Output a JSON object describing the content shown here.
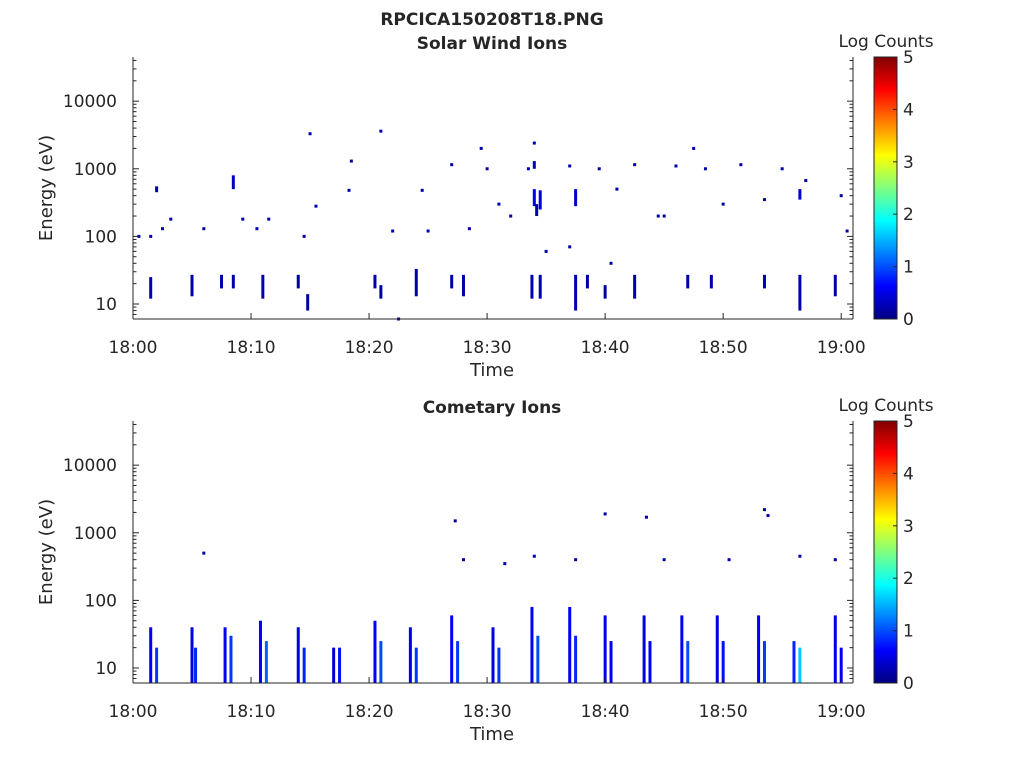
{
  "figure": {
    "title": "RPCICA150208T18.PNG"
  },
  "colorbar": {
    "label": "Log Counts",
    "ticks": [
      "0",
      "1",
      "2",
      "3",
      "4",
      "5"
    ],
    "range": [
      0,
      5
    ],
    "colormap": "jet"
  },
  "chart_data": [
    {
      "type": "heatmap",
      "id": "solar",
      "title": "Solar Wind Ions",
      "xlabel": "Time",
      "ylabel": "Energy (eV)",
      "y_scale": "log",
      "ylim": [
        6,
        45000
      ],
      "xlim": [
        "18:00",
        "19:01"
      ],
      "x_ticks": [
        "18:00",
        "18:10",
        "18:20",
        "18:30",
        "18:40",
        "18:50",
        "19:00"
      ],
      "y_ticks": [
        "10",
        "100",
        "1000",
        "10000"
      ],
      "colorbar_label": "Log Counts",
      "value_unit": "log10 counts",
      "cells": [
        [
          "18:01.5",
          12,
          25,
          0.25
        ],
        [
          "18:05.0",
          13,
          27,
          0.2
        ],
        [
          "18:07.5",
          17,
          27,
          0.2
        ],
        [
          "18:08.5",
          17,
          27,
          0.2
        ],
        [
          "18:11.0",
          12,
          27,
          0.2
        ],
        [
          "18:14.0",
          17,
          27,
          0.2
        ],
        [
          "18:14.8",
          8,
          14,
          0.2
        ],
        [
          "18:20.5",
          17,
          27,
          0.2
        ],
        [
          "18:21.0",
          12,
          19,
          0.2
        ],
        [
          "18:24.0",
          13,
          33,
          0.2
        ],
        [
          "18:27.0",
          17,
          27,
          0.2
        ],
        [
          "18:28.0",
          13,
          27,
          0.2
        ],
        [
          "18:33.8",
          12,
          27,
          0.25
        ],
        [
          "18:34.5",
          12,
          27,
          0.25
        ],
        [
          "18:37.5",
          8,
          27,
          0.25
        ],
        [
          "18:38.5",
          17,
          27,
          0.2
        ],
        [
          "18:40.0",
          12,
          19,
          0.2
        ],
        [
          "18:42.5",
          12,
          27,
          0.2
        ],
        [
          "18:47.0",
          17,
          27,
          0.2
        ],
        [
          "18:49.0",
          17,
          27,
          0.2
        ],
        [
          "18:53.5",
          17,
          27,
          0.25
        ],
        [
          "18:56.5",
          8,
          27,
          0.25
        ],
        [
          "18:59.5",
          13,
          27,
          0.2
        ],
        [
          "18:34.0",
          280,
          500,
          0.5
        ],
        [
          "18:34.5",
          250,
          480,
          0.4
        ],
        [
          "18:37.5",
          280,
          500,
          0.4
        ],
        [
          "18:56.5",
          350,
          500,
          0.4
        ],
        [
          "18:08.5",
          500,
          800,
          0.3
        ],
        [
          "18:02.0",
          450,
          550,
          0.25
        ],
        [
          "18:34.0",
          1000,
          1300,
          0.3
        ],
        [
          "18:34.2",
          200,
          300,
          0.2
        ]
      ],
      "points": [
        [
          "18:00.5",
          100
        ],
        [
          "18:01.5",
          100
        ],
        [
          "18:02.5",
          130
        ],
        [
          "18:03.2",
          180
        ],
        [
          "18:06.0",
          130
        ],
        [
          "18:09.3",
          180
        ],
        [
          "18:10.5",
          130
        ],
        [
          "18:11.5",
          180
        ],
        [
          "18:14.5",
          100
        ],
        [
          "18:15.0",
          3300
        ],
        [
          "18:15.5",
          280
        ],
        [
          "18:18.3",
          480
        ],
        [
          "18:18.5",
          1300
        ],
        [
          "18:21.0",
          3600
        ],
        [
          "18:22.0",
          120
        ],
        [
          "18:24.5",
          480
        ],
        [
          "18:25.0",
          120
        ],
        [
          "18:27.0",
          1150
        ],
        [
          "18:28.5",
          130
        ],
        [
          "18:29.5",
          2000
        ],
        [
          "18:30.0",
          1000
        ],
        [
          "18:31.0",
          300
        ],
        [
          "18:32.0",
          200
        ],
        [
          "18:33.5",
          1000
        ],
        [
          "18:34.0",
          2400
        ],
        [
          "18:35.0",
          60
        ],
        [
          "18:37.0",
          1100
        ],
        [
          "18:39.5",
          1000
        ],
        [
          "18:41.0",
          500
        ],
        [
          "18:42.5",
          1150
        ],
        [
          "18:44.5",
          200
        ],
        [
          "18:46.0",
          1100
        ],
        [
          "18:47.5",
          2000
        ],
        [
          "18:48.5",
          1000
        ],
        [
          "18:50.0",
          300
        ],
        [
          "18:51.5",
          1150
        ],
        [
          "18:53.5",
          350
        ],
        [
          "18:55.0",
          1000
        ],
        [
          "18:57.0",
          670
        ],
        [
          "19:00.0",
          400
        ],
        [
          "19:00.5",
          120
        ],
        [
          "18:45.0",
          200
        ],
        [
          "18:40.5",
          40
        ],
        [
          "18:37.0",
          70
        ],
        [
          "18:22.5",
          6
        ]
      ]
    },
    {
      "type": "heatmap",
      "id": "comet",
      "title": "Cometary Ions",
      "xlabel": "Time",
      "ylabel": "Energy (eV)",
      "y_scale": "log",
      "ylim": [
        6,
        45000
      ],
      "xlim": [
        "18:00",
        "19:01"
      ],
      "x_ticks": [
        "18:00",
        "18:10",
        "18:20",
        "18:30",
        "18:40",
        "18:50",
        "19:00"
      ],
      "y_ticks": [
        "10",
        "100",
        "1000",
        "10000"
      ],
      "colorbar_label": "Log Counts",
      "value_unit": "log10 counts",
      "columns": [
        [
          "18:01.5",
          6,
          40,
          0.6
        ],
        [
          "18:02.0",
          6,
          20,
          0.9
        ],
        [
          "18:05.0",
          6,
          40,
          0.5
        ],
        [
          "18:05.3",
          6,
          20,
          0.8
        ],
        [
          "18:07.8",
          6,
          40,
          0.6
        ],
        [
          "18:08.3",
          6,
          30,
          0.9
        ],
        [
          "18:10.8",
          6,
          50,
          0.6
        ],
        [
          "18:11.3",
          6,
          25,
          1.1
        ],
        [
          "18:14.0",
          6,
          40,
          0.5
        ],
        [
          "18:14.5",
          6,
          20,
          0.8
        ],
        [
          "18:17.0",
          6,
          20,
          0.4
        ],
        [
          "18:17.5",
          6,
          20,
          0.7
        ],
        [
          "18:20.5",
          6,
          50,
          0.6
        ],
        [
          "18:21.0",
          6,
          25,
          1.0
        ],
        [
          "18:23.5",
          6,
          40,
          0.5
        ],
        [
          "18:24.0",
          6,
          20,
          0.9
        ],
        [
          "18:27.0",
          6,
          60,
          0.6
        ],
        [
          "18:27.5",
          6,
          25,
          0.9
        ],
        [
          "18:30.5",
          6,
          40,
          0.5
        ],
        [
          "18:31.0",
          6,
          20,
          0.9
        ],
        [
          "18:33.8",
          6,
          80,
          0.6
        ],
        [
          "18:34.3",
          6,
          30,
          1.0
        ],
        [
          "18:37.0",
          6,
          80,
          0.6
        ],
        [
          "18:37.5",
          6,
          30,
          0.8
        ],
        [
          "18:40.0",
          6,
          60,
          0.5
        ],
        [
          "18:40.5",
          6,
          25,
          0.6
        ],
        [
          "18:43.3",
          6,
          60,
          0.5
        ],
        [
          "18:43.8",
          6,
          25,
          0.6
        ],
        [
          "18:46.5",
          6,
          60,
          0.6
        ],
        [
          "18:47.0",
          6,
          25,
          1.0
        ],
        [
          "18:49.5",
          6,
          60,
          0.5
        ],
        [
          "18:50.0",
          6,
          25,
          0.7
        ],
        [
          "18:53.0",
          6,
          60,
          0.6
        ],
        [
          "18:53.5",
          6,
          25,
          0.9
        ],
        [
          "18:56.0",
          6,
          25,
          0.8
        ],
        [
          "18:56.5",
          6,
          20,
          1.6
        ],
        [
          "18:59.5",
          6,
          60,
          0.5
        ],
        [
          "19:00.0",
          6,
          20,
          0.6
        ]
      ],
      "points": [
        [
          "18:27.3",
          1500
        ],
        [
          "18:40.0",
          1900
        ],
        [
          "18:43.5",
          1700
        ],
        [
          "18:53.5",
          2200
        ],
        [
          "18:53.8",
          1800
        ],
        [
          "18:06.0",
          500
        ],
        [
          "18:34.0",
          450
        ],
        [
          "18:37.5",
          400
        ],
        [
          "18:28.0",
          400
        ],
        [
          "18:31.5",
          350
        ],
        [
          "18:45.0",
          400
        ],
        [
          "18:50.5",
          400
        ],
        [
          "18:56.5",
          450
        ],
        [
          "18:59.5",
          400
        ]
      ]
    }
  ]
}
